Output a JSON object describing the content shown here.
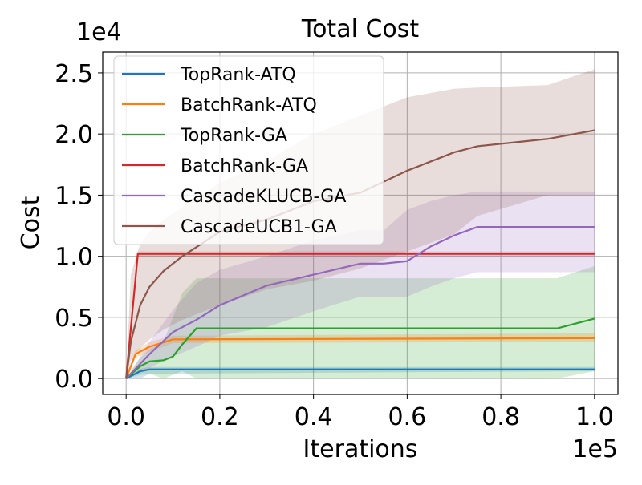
{
  "chart_data": {
    "type": "line",
    "title": "Total Cost",
    "xlabel": "Iterations",
    "ylabel": "Cost",
    "x_offset_label": "1e5",
    "y_offset_label": "1e4",
    "xlim": [
      -5000,
      105000
    ],
    "ylim": [
      -1300,
      26700
    ],
    "xticks": [
      0,
      20000,
      40000,
      60000,
      80000,
      100000
    ],
    "xtick_labels": [
      "0.0",
      "0.2",
      "0.4",
      "0.6",
      "0.8",
      "1.0"
    ],
    "yticks": [
      0,
      5000,
      10000,
      15000,
      20000,
      25000
    ],
    "ytick_labels": [
      "0.0",
      "0.5",
      "1.0",
      "1.5",
      "2.0",
      "2.5"
    ],
    "grid": true,
    "legend_position": "top-left",
    "series": [
      {
        "name": "TopRank-ATQ",
        "color": "#1f77b4",
        "x": [
          0,
          3000,
          5000,
          100000
        ],
        "y": [
          0,
          600,
          750,
          750
        ],
        "lower": [
          0,
          0,
          400,
          600
        ],
        "upper": [
          0,
          800,
          950,
          950
        ]
      },
      {
        "name": "BatchRank-ATQ",
        "color": "#ff7f0e",
        "x": [
          0,
          2000,
          5000,
          10000,
          100000
        ],
        "y": [
          0,
          2000,
          2600,
          3200,
          3300
        ],
        "lower": [
          0,
          1700,
          2200,
          2900,
          3000
        ],
        "upper": [
          0,
          2300,
          3000,
          3500,
          3700
        ]
      },
      {
        "name": "TopRank-GA",
        "color": "#2ca02c",
        "x": [
          0,
          3000,
          5000,
          8000,
          10000,
          12000,
          15000,
          92000,
          100000
        ],
        "y": [
          0,
          1000,
          1400,
          1500,
          1800,
          2800,
          4100,
          4100,
          4900
        ],
        "lower": [
          0,
          300,
          400,
          0,
          300,
          600,
          0,
          0,
          600
        ],
        "upper": [
          0,
          1700,
          2400,
          3000,
          5000,
          7000,
          8200,
          8200,
          9200
        ]
      },
      {
        "name": "BatchRank-GA",
        "color": "#d62728",
        "x": [
          0,
          2500,
          100000
        ],
        "y": [
          0,
          10200,
          10200
        ],
        "lower": [
          0,
          10000,
          10000
        ],
        "upper": [
          0,
          10400,
          10400
        ]
      },
      {
        "name": "CascadeKLUCB-GA",
        "color": "#9467bd",
        "x": [
          0,
          5000,
          10000,
          15000,
          20000,
          30000,
          40000,
          50000,
          55000,
          60000,
          65000,
          70000,
          75000,
          100000
        ],
        "y": [
          0,
          2000,
          3800,
          4800,
          6000,
          7600,
          8500,
          9400,
          9400,
          9600,
          10800,
          11700,
          12400,
          12400
        ],
        "lower": [
          0,
          900,
          1800,
          2600,
          3500,
          4200,
          5500,
          6700,
          6700,
          6700,
          7500,
          8200,
          8700,
          8700
        ],
        "upper": [
          0,
          3000,
          5600,
          7800,
          8900,
          10000,
          11300,
          12100,
          12100,
          13800,
          14500,
          15000,
          15300,
          15300
        ]
      },
      {
        "name": "CascadeUCB1-GA",
        "color": "#8c564b",
        "x": [
          0,
          1000,
          3000,
          5000,
          8000,
          12000,
          20000,
          30000,
          40000,
          50000,
          60000,
          70000,
          75000,
          90000,
          100000
        ],
        "y": [
          0,
          3000,
          6000,
          7500,
          8800,
          10000,
          12000,
          13000,
          14500,
          15200,
          17000,
          18500,
          19000,
          19600,
          20300
        ],
        "lower": [
          0,
          1500,
          2500,
          3200,
          4000,
          4800,
          6000,
          7300,
          8000,
          9000,
          10400,
          11800,
          13300,
          15000,
          15000
        ],
        "upper": [
          0,
          8500,
          11000,
          12000,
          13000,
          14000,
          16000,
          17800,
          20000,
          21500,
          23000,
          23700,
          23800,
          24000,
          25300
        ]
      }
    ]
  }
}
